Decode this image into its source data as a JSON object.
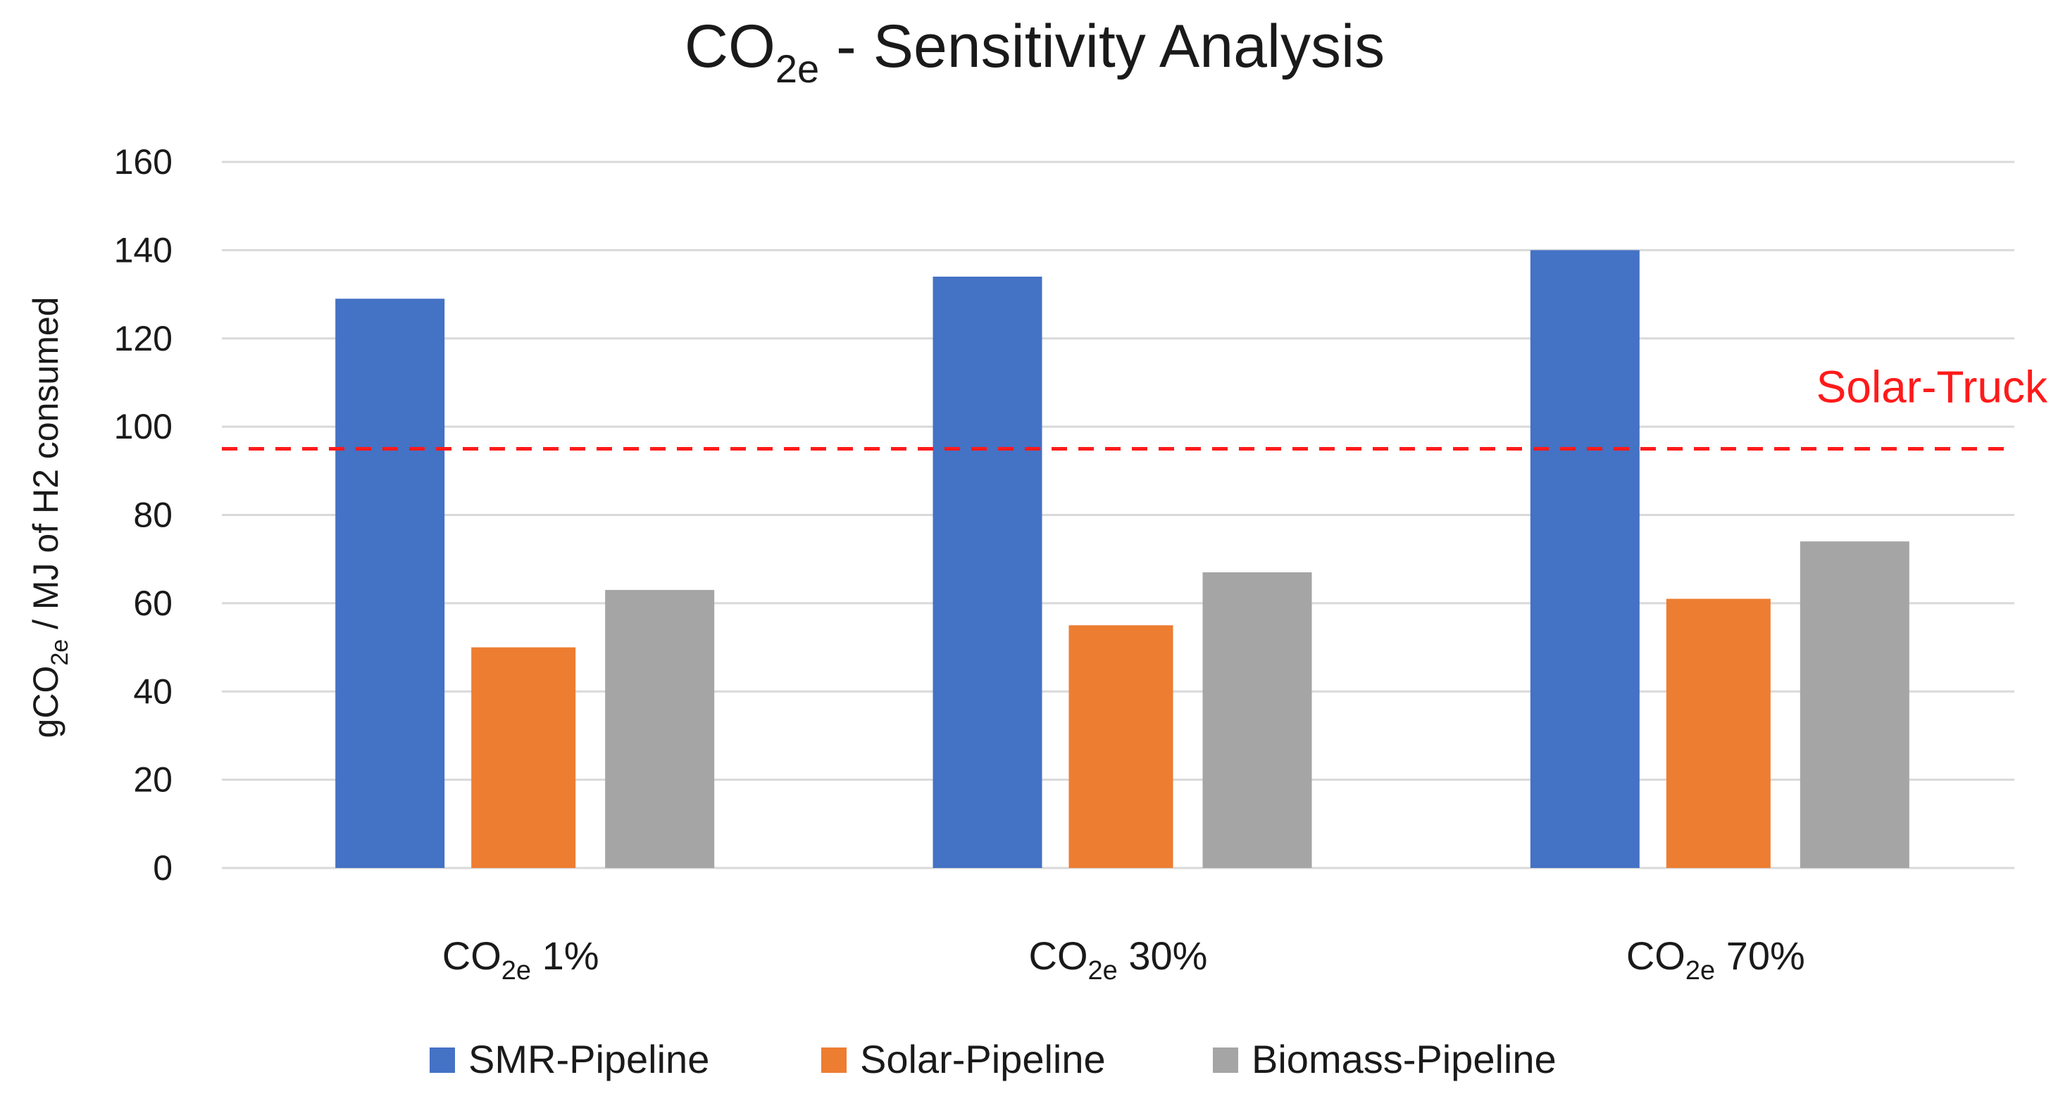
{
  "chart_data": {
    "type": "bar",
    "title": {
      "main": "CO",
      "sub": "2e",
      "rest": " - Sensitivity Analysis"
    },
    "ylabel": {
      "pre": "gCO",
      "sub": "2e",
      "post": " / MJ of H2 consumed"
    },
    "xlabel": "",
    "ylim": [
      0,
      160
    ],
    "yticks": [
      0,
      20,
      40,
      60,
      80,
      100,
      120,
      140,
      160
    ],
    "grid": true,
    "categories": [
      {
        "pre": "CO",
        "sub": "2e",
        "post": " 1%"
      },
      {
        "pre": "CO",
        "sub": "2e",
        "post": " 30%"
      },
      {
        "pre": "CO",
        "sub": "2e",
        "post": " 70%"
      }
    ],
    "series": [
      {
        "name": "SMR-Pipeline",
        "color": "#4472c4",
        "values": [
          129,
          134,
          140
        ]
      },
      {
        "name": "Solar-Pipeline",
        "color": "#ed7d31",
        "values": [
          50,
          55,
          61
        ]
      },
      {
        "name": "Biomass-Pipeline",
        "color": "#a5a5a5",
        "values": [
          63,
          67,
          74
        ]
      }
    ],
    "reference_line": {
      "label": "Solar-Truck",
      "value": 95,
      "color": "#ff1a1a",
      "style": "dashed"
    },
    "legend": "bottom"
  }
}
